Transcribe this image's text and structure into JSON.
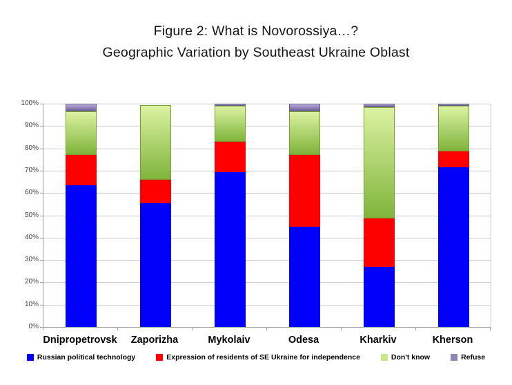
{
  "title": {
    "line1": "Figure 2: What is Novorossiya…?",
    "line2": "Geographic Variation by Southeast Ukraine Oblast"
  },
  "chart_data": {
    "type": "bar",
    "stacked": true,
    "units": "percent",
    "title": "Figure 2: What is Novorossiya…? Geographic Variation by Southeast Ukraine Oblast",
    "xlabel": "",
    "ylabel": "",
    "ylim": [
      0,
      100
    ],
    "grid": true,
    "legend_position": "bottom",
    "categories": [
      "Dnipropetrovsk",
      "Zaporizha",
      "Mykolaiv",
      "Odesa",
      "Kharkiv",
      "Kherson"
    ],
    "ytick_labels": [
      "0%",
      "10%",
      "20%",
      "30%",
      "40%",
      "50%",
      "60%",
      "70%",
      "80%",
      "90%",
      "100%"
    ],
    "series": [
      {
        "name": "Russian political technology",
        "legend_swatch": "#0000fe",
        "fill_top": "#0101fb",
        "fill_bottom": "#0101fb",
        "border": "#0101fb",
        "values": [
          63.5,
          55.5,
          69.5,
          45,
          27,
          71.5
        ]
      },
      {
        "name": "Expression of residents of SE Ukraine for independence",
        "legend_swatch": "#fe0000",
        "fill_top": "#fe0000",
        "fill_bottom": "#fe0000",
        "border": "#fe0000",
        "values": [
          13.5,
          10.5,
          13.5,
          32,
          21.5,
          7
        ]
      },
      {
        "name": "Don't know",
        "legend_swatch": "#c9e788",
        "fill_top": "#dcf2a2",
        "fill_bottom": "#7fb43b",
        "border": "#76a032",
        "values": [
          19.5,
          33.5,
          16,
          19.5,
          50,
          20.5
        ]
      },
      {
        "name": "Refuse",
        "legend_swatch": "#9184bc",
        "fill_top": "#b6abd7",
        "fill_bottom": "#71629c",
        "border": "#6a5c91",
        "values": [
          3.5,
          0,
          1,
          3.5,
          1.5,
          1
        ]
      }
    ]
  },
  "colors": {
    "background": "#ffffff",
    "gridline": "#c9c9c9",
    "axis": "#9c9c9c",
    "tick_label": "#404040",
    "category_label": "#000000",
    "title_text": "#151515"
  }
}
